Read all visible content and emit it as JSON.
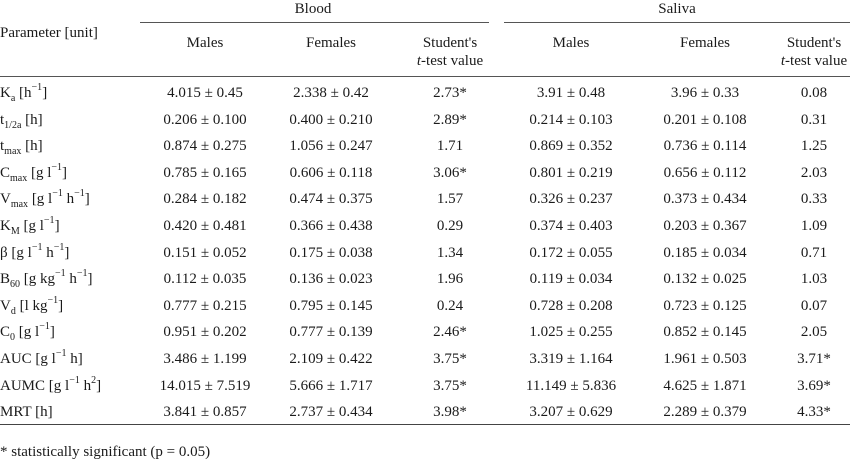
{
  "header": {
    "parameter_label": "Parameter [unit]",
    "group_blood": "Blood",
    "group_saliva": "Saliva",
    "col_males": "Males",
    "col_females": "Females",
    "col_ttest_line1": "Student's",
    "col_ttest_line2_italic": "t",
    "col_ttest_line2_rest": "-test value"
  },
  "rows": [
    {
      "p_main": "K",
      "p_sub": "a",
      "p_rest": " [h",
      "p_sup": "−1",
      "p_end": "]",
      "b_m": "4.015 ± 0.45",
      "b_f": "2.338 ± 0.42",
      "b_t": "2.73*",
      "s_m": "3.91 ± 0.48",
      "s_f": "3.96 ± 0.33",
      "s_t": "0.08"
    },
    {
      "p_main": "t",
      "p_sub": "1/2a",
      "p_rest": " [h]",
      "p_sup": "",
      "p_end": "",
      "b_m": "0.206 ± 0.100",
      "b_f": "0.400 ± 0.210",
      "b_t": "2.89*",
      "s_m": "0.214 ± 0.103",
      "s_f": "0.201 ± 0.108",
      "s_t": "0.31"
    },
    {
      "p_main": "t",
      "p_sub": "max",
      "p_rest": " [h]",
      "p_sup": "",
      "p_end": "",
      "b_m": "0.874 ± 0.275",
      "b_f": "1.056 ± 0.247",
      "b_t": "1.71",
      "s_m": "0.869 ± 0.352",
      "s_f": "0.736 ± 0.114",
      "s_t": "1.25"
    },
    {
      "p_main": "C",
      "p_sub": "max",
      "p_rest": " [g l",
      "p_sup": "−1",
      "p_end": "]",
      "b_m": "0.785 ± 0.165",
      "b_f": "0.606 ± 0.118",
      "b_t": "3.06*",
      "s_m": "0.801 ± 0.219",
      "s_f": "0.656 ± 0.112",
      "s_t": "2.03"
    },
    {
      "p_main": "V",
      "p_sub": "max",
      "p_rest": " [g l",
      "p_sup": "−1",
      "p_end": " h",
      "p_sup2": "−1",
      "p_end2": "]",
      "b_m": "0.284 ± 0.182",
      "b_f": "0.474 ± 0.375",
      "b_t": "1.57",
      "s_m": "0.326 ± 0.237",
      "s_f": "0.373 ± 0.434",
      "s_t": "0.33"
    },
    {
      "p_main": "K",
      "p_sub": "M",
      "p_rest": " [g l",
      "p_sup": "−1",
      "p_end": "]",
      "b_m": "0.420 ± 0.481",
      "b_f": "0.366 ± 0.438",
      "b_t": "0.29",
      "s_m": "0.374 ± 0.403",
      "s_f": "0.203 ± 0.367",
      "s_t": "1.09"
    },
    {
      "p_main": "β",
      "p_sub": "",
      "p_rest": " [g l",
      "p_sup": "−1",
      "p_end": " h",
      "p_sup2": "−1",
      "p_end2": "]",
      "b_m": "0.151 ± 0.052",
      "b_f": "0.175 ± 0.038",
      "b_t": "1.34",
      "s_m": "0.172 ± 0.055",
      "s_f": "0.185 ± 0.034",
      "s_t": "0.71"
    },
    {
      "p_main": "B",
      "p_sub": "60",
      "p_rest": " [g kg",
      "p_sup": "−1",
      "p_end": " h",
      "p_sup2": "−1",
      "p_end2": "]",
      "b_m": "0.112 ± 0.035",
      "b_f": "0.136 ± 0.023",
      "b_t": "1.96",
      "s_m": "0.119 ± 0.034",
      "s_f": "0.132 ± 0.025",
      "s_t": "1.03"
    },
    {
      "p_main": "V",
      "p_sub": "d",
      "p_rest": " [l kg",
      "p_sup": "−1",
      "p_end": "]",
      "b_m": "0.777 ± 0.215",
      "b_f": "0.795 ± 0.145",
      "b_t": "0.24",
      "s_m": "0.728 ± 0.208",
      "s_f": "0.723 ± 0.125",
      "s_t": "0.07"
    },
    {
      "p_main": "C",
      "p_sub": "0",
      "p_rest": " [g l",
      "p_sup": "−1",
      "p_end": "]",
      "b_m": "0.951 ± 0.202",
      "b_f": "0.777 ± 0.139",
      "b_t": "2.46*",
      "s_m": "1.025 ± 0.255",
      "s_f": "0.852 ± 0.145",
      "s_t": "2.05"
    },
    {
      "p_main": "AUC",
      "p_sub": "",
      "p_rest": " [g l",
      "p_sup": "−1",
      "p_end": " h]",
      "b_m": "3.486 ± 1.199",
      "b_f": "2.109 ± 0.422",
      "b_t": "3.75*",
      "s_m": "3.319 ± 1.164",
      "s_f": "1.961 ± 0.503",
      "s_t": "3.71*"
    },
    {
      "p_main": "AUMC",
      "p_sub": "",
      "p_rest": " [g l",
      "p_sup": "−1",
      "p_end": " h",
      "p_sup2": "2",
      "p_end2": "]",
      "b_m": "14.015 ± 7.519",
      "b_f": "5.666 ± 1.717",
      "b_t": "3.75*",
      "s_m": "11.149 ± 5.836",
      "s_f": "4.625 ± 1.871",
      "s_t": "3.69*"
    },
    {
      "p_main": "MRT",
      "p_sub": "",
      "p_rest": " [h]",
      "p_sup": "",
      "p_end": "",
      "b_m": "3.841 ± 0.857",
      "b_f": "2.737 ± 0.434",
      "b_t": "3.98*",
      "s_m": "3.207 ± 0.629",
      "s_f": "2.289 ± 0.379",
      "s_t": "4.33*"
    }
  ],
  "footnote": "* statistically significant (p = 0.05)"
}
